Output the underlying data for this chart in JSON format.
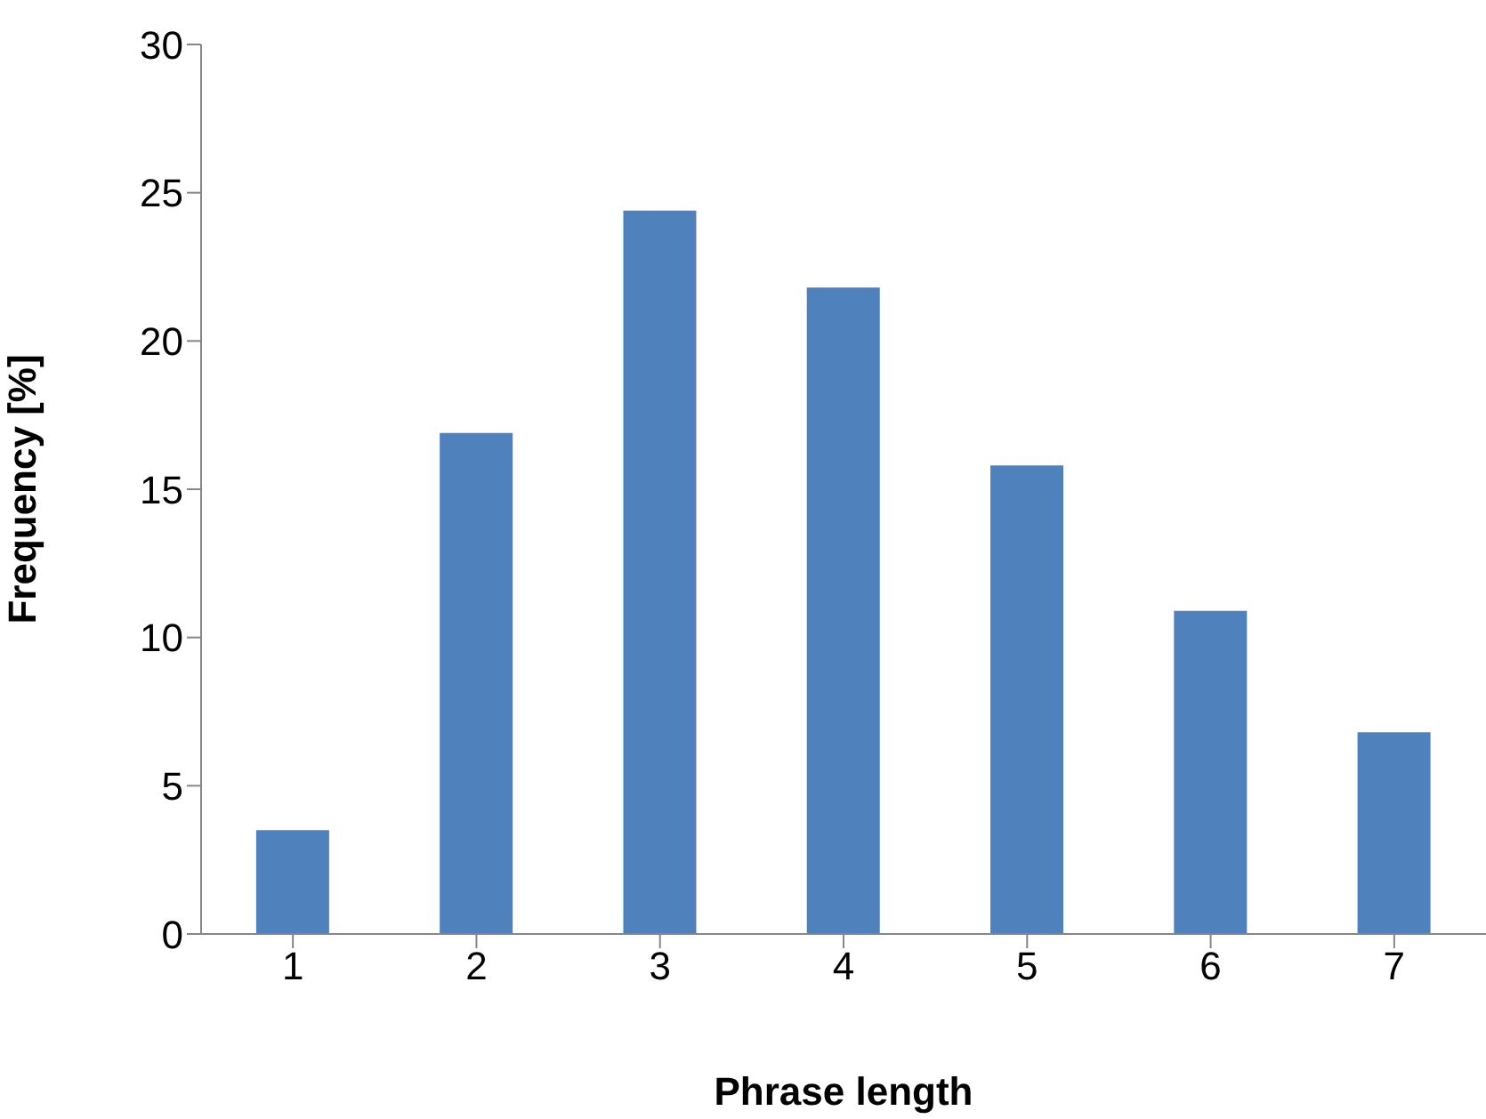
{
  "chart_data": {
    "type": "bar",
    "xlabel": "Phrase length",
    "ylabel": "Frequency [%]",
    "categories": [
      "1",
      "2",
      "3",
      "4",
      "5",
      "6",
      "7"
    ],
    "values": [
      3.5,
      16.9,
      24.4,
      21.8,
      15.8,
      10.9,
      6.8
    ],
    "color": "#4f81bd",
    "ylim": [
      0,
      30
    ],
    "yticks": [
      0,
      5,
      10,
      15,
      20,
      25,
      30
    ],
    "grid": false,
    "legend": false
  }
}
